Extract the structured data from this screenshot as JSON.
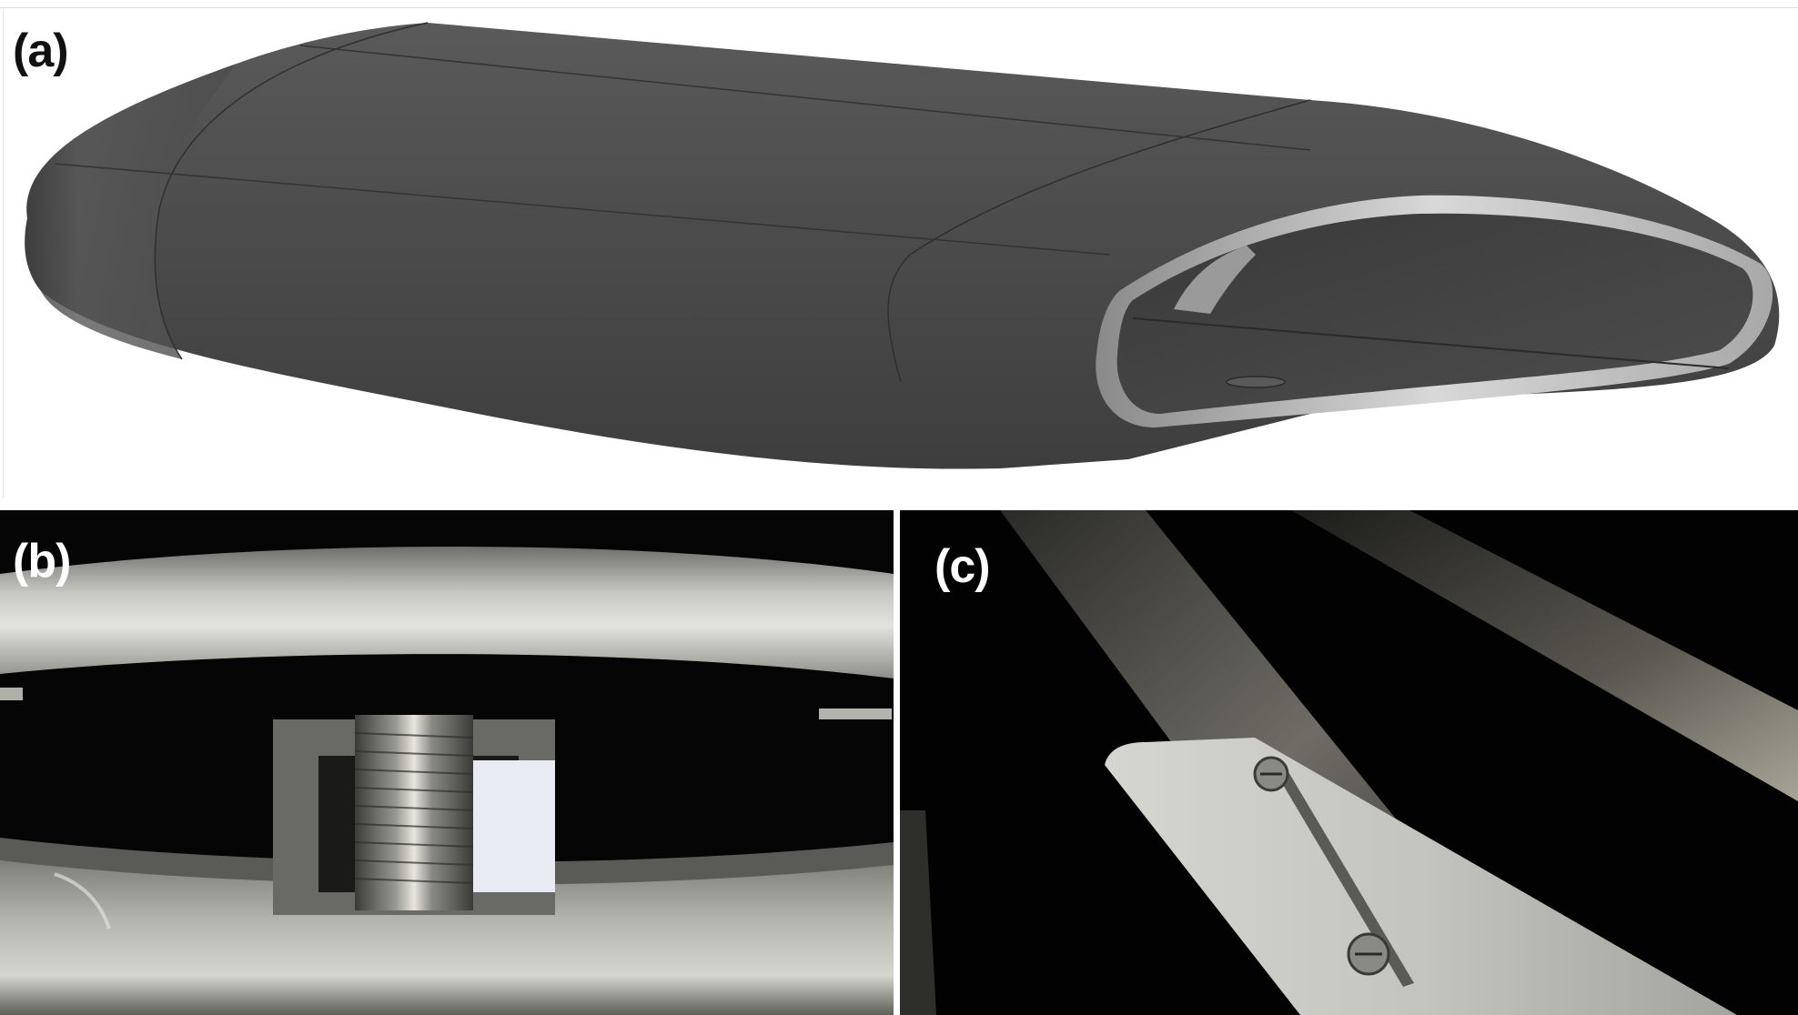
{
  "panels": {
    "a": {
      "label": "(a)"
    },
    "b": {
      "label": "(b)"
    },
    "c": {
      "label": "(c)"
    }
  },
  "colors": {
    "wing_body": "#4a4a4a",
    "wing_highlight": "#c9c9c9",
    "photo_background": "#000000",
    "label_dark": "#111111",
    "label_light": "#ffffff"
  }
}
